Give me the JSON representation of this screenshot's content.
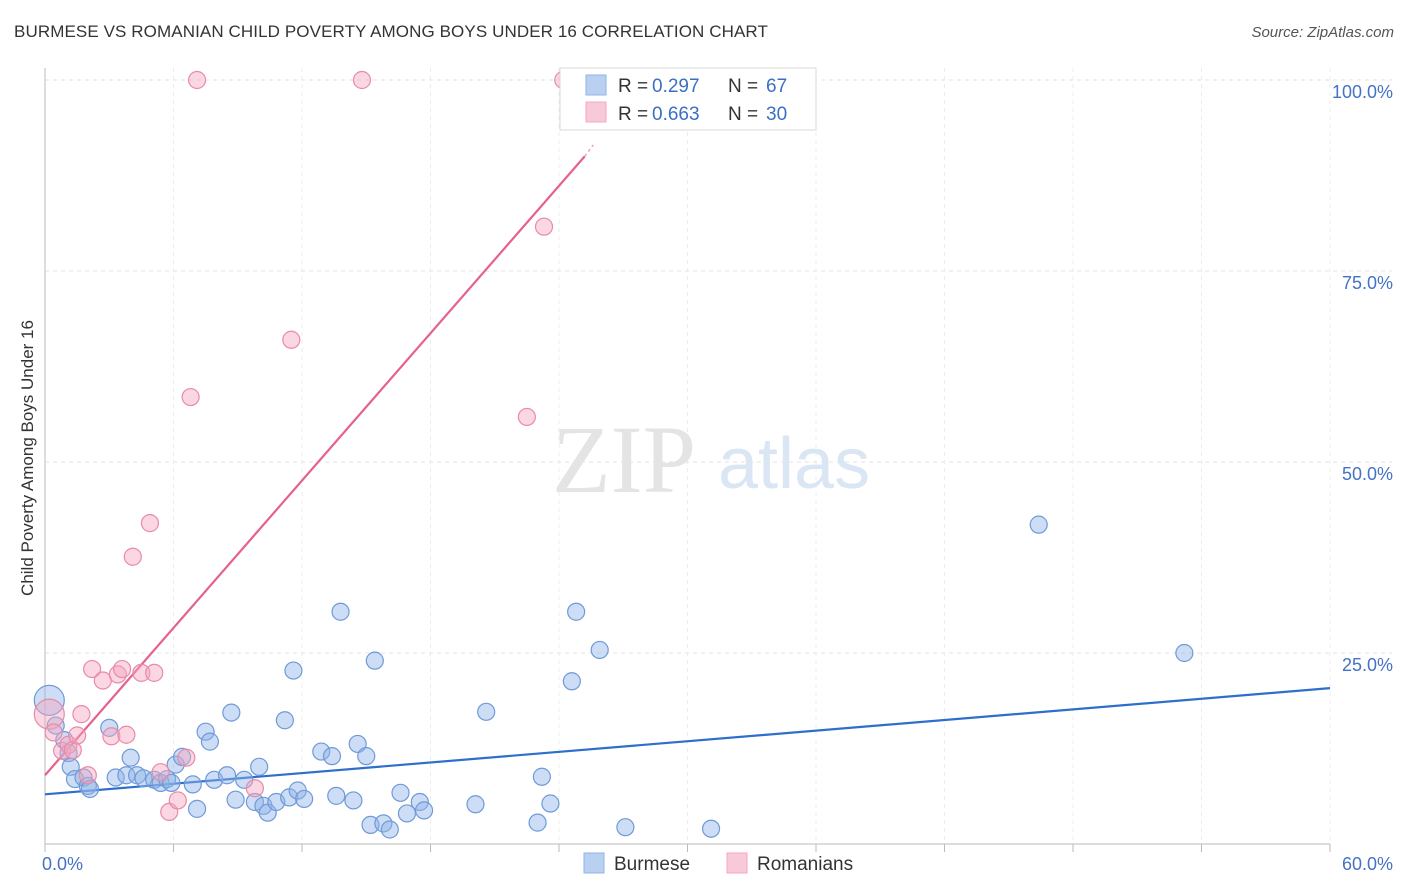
{
  "title": "BURMESE VS ROMANIAN CHILD POVERTY AMONG BOYS UNDER 16 CORRELATION CHART",
  "source": "Source: ZipAtlas.com",
  "watermark": {
    "zip": "ZIP",
    "atlas": "atlas"
  },
  "chart_data": {
    "type": "scatter",
    "xlabel": "",
    "ylabel": "Child Poverty Among Boys Under 16",
    "xlim": [
      0,
      60
    ],
    "ylim": [
      0,
      100
    ],
    "x_tick_labels": [
      {
        "value": 0,
        "label": "0.0%"
      },
      {
        "value": 60,
        "label": "60.0%"
      }
    ],
    "y_tick_labels": [
      {
        "value": 25,
        "label": "25.0%"
      },
      {
        "value": 50,
        "label": "50.0%"
      },
      {
        "value": 75,
        "label": "75.0%"
      },
      {
        "value": 100,
        "label": "100.0%"
      }
    ],
    "grid": true,
    "legend": {
      "position": "top-center",
      "entries": [
        {
          "series": "Burmese",
          "r_label": "R =",
          "r_value": "0.297",
          "n_label": "N =",
          "n_value": "67",
          "color": "#8fb4e8"
        },
        {
          "series": "Romanians",
          "r_label": "R =",
          "r_value": "0.663",
          "n_label": "N =",
          "n_value": "30",
          "color": "#f4a7bf"
        }
      ]
    },
    "bottom_legend": [
      {
        "name": "Burmese",
        "color": "#8fb4e8"
      },
      {
        "name": "Romanians",
        "color": "#f4a7bf"
      }
    ],
    "series": [
      {
        "name": "Burmese",
        "color": "#8fb4e8",
        "stroke": "#6f9ad8",
        "trend": {
          "x": [
            0,
            60
          ],
          "y": [
            6.5,
            20.4
          ],
          "color": "#2e6fcc"
        },
        "points": [
          [
            0.2,
            18.8,
            "big"
          ],
          [
            0.5,
            15.5
          ],
          [
            0.9,
            13.6
          ],
          [
            1.1,
            11.9
          ],
          [
            1.2,
            10.1
          ],
          [
            1.4,
            8.5
          ],
          [
            1.8,
            8.7
          ],
          [
            2.0,
            7.6
          ],
          [
            2.1,
            7.2
          ],
          [
            3.0,
            15.2
          ],
          [
            3.3,
            8.7
          ],
          [
            3.8,
            9.0
          ],
          [
            4.0,
            11.3
          ],
          [
            4.3,
            9.0
          ],
          [
            4.6,
            8.6
          ],
          [
            5.1,
            8.4
          ],
          [
            5.4,
            8.0
          ],
          [
            5.7,
            8.5
          ],
          [
            5.9,
            8.0
          ],
          [
            6.1,
            10.4
          ],
          [
            6.4,
            11.4
          ],
          [
            6.9,
            7.8
          ],
          [
            7.1,
            4.6
          ],
          [
            7.5,
            14.7
          ],
          [
            7.7,
            13.4
          ],
          [
            7.9,
            8.4
          ],
          [
            8.5,
            9.0
          ],
          [
            8.7,
            17.2
          ],
          [
            8.9,
            5.8
          ],
          [
            9.3,
            8.4
          ],
          [
            9.8,
            5.5
          ],
          [
            10.0,
            10.1
          ],
          [
            10.2,
            5.0
          ],
          [
            10.4,
            4.1
          ],
          [
            10.8,
            5.5
          ],
          [
            11.2,
            16.2
          ],
          [
            11.4,
            6.1
          ],
          [
            11.6,
            22.7
          ],
          [
            11.8,
            7.0
          ],
          [
            12.1,
            5.9
          ],
          [
            12.9,
            12.1
          ],
          [
            13.4,
            11.5
          ],
          [
            13.6,
            6.3
          ],
          [
            13.8,
            30.4
          ],
          [
            14.4,
            5.7
          ],
          [
            14.6,
            13.1
          ],
          [
            15.0,
            11.5
          ],
          [
            15.2,
            2.5
          ],
          [
            15.4,
            24.0
          ],
          [
            15.8,
            2.7
          ],
          [
            16.1,
            1.9
          ],
          [
            16.6,
            6.7
          ],
          [
            16.9,
            4.0
          ],
          [
            17.5,
            5.5
          ],
          [
            17.7,
            4.4
          ],
          [
            20.1,
            5.2
          ],
          [
            20.6,
            17.3
          ],
          [
            23.0,
            2.8
          ],
          [
            23.2,
            8.8
          ],
          [
            23.6,
            5.3
          ],
          [
            24.6,
            21.3
          ],
          [
            24.8,
            30.4
          ],
          [
            25.9,
            25.4
          ],
          [
            27.1,
            2.2
          ],
          [
            31.1,
            2.0
          ],
          [
            46.4,
            41.8
          ],
          [
            53.2,
            25.0
          ]
        ]
      },
      {
        "name": "Romanians",
        "color": "#f4a7bf",
        "stroke": "#e98aa8",
        "trend": {
          "x": [
            0,
            25.2
          ],
          "y": [
            9.0,
            90.0
          ],
          "dashed_to": {
            "x": 25.6,
            "y": 91.5
          },
          "color": "#e5628f"
        },
        "points": [
          [
            0.2,
            17.0,
            "big"
          ],
          [
            0.4,
            14.6
          ],
          [
            0.8,
            12.2
          ],
          [
            1.1,
            13.0
          ],
          [
            1.3,
            12.3
          ],
          [
            1.5,
            14.2
          ],
          [
            1.7,
            17.0
          ],
          [
            2.0,
            9.0
          ],
          [
            2.2,
            22.9
          ],
          [
            2.7,
            21.4
          ],
          [
            3.1,
            14.1
          ],
          [
            3.4,
            22.2
          ],
          [
            3.6,
            22.9
          ],
          [
            3.8,
            14.3
          ],
          [
            4.1,
            37.6
          ],
          [
            4.5,
            22.4
          ],
          [
            4.9,
            42.0
          ],
          [
            5.1,
            22.4
          ],
          [
            5.4,
            9.4
          ],
          [
            5.8,
            4.2
          ],
          [
            6.2,
            5.7
          ],
          [
            6.6,
            11.3
          ],
          [
            6.8,
            58.5
          ],
          [
            7.1,
            100.0
          ],
          [
            9.8,
            7.3
          ],
          [
            11.5,
            66.0
          ],
          [
            14.8,
            100.0
          ],
          [
            22.5,
            55.9
          ],
          [
            23.3,
            80.8
          ],
          [
            24.2,
            100.0
          ]
        ]
      }
    ]
  }
}
